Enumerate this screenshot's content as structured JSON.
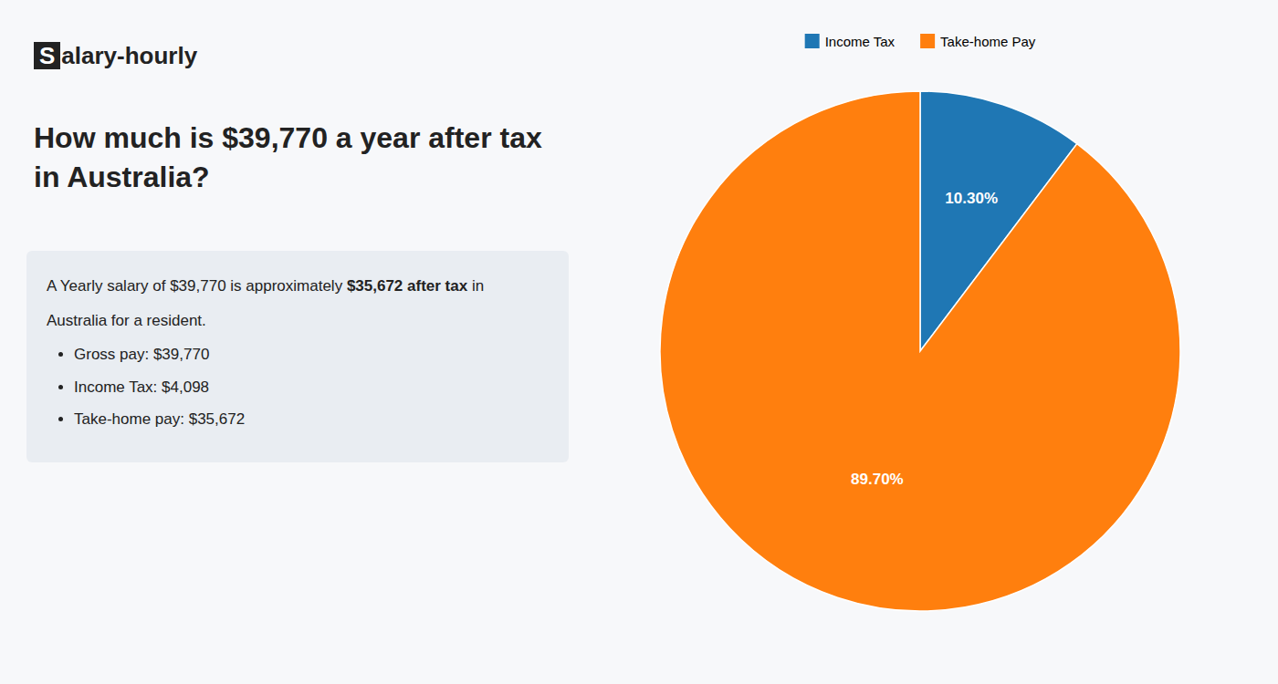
{
  "chart_data": {
    "type": "pie",
    "title": "How much is $39,770 a year after tax in Australia?",
    "annotations": [
      "S",
      "alary-hourly",
      "A Yearly salary of $39,770 is approximately ",
      "$35,672 after tax",
      " in",
      "Australia for a resident.",
      "Gross pay: $39,770",
      "Income Tax: $4,098",
      "Take-home pay: $35,672"
    ],
    "categories": [
      "Income Tax",
      "Take-home Pay"
    ],
    "values": [
      10.3,
      89.7
    ],
    "value_labels": [
      "10.30%",
      "89.70%"
    ],
    "data_labels": true,
    "legend": "top"
  }
}
